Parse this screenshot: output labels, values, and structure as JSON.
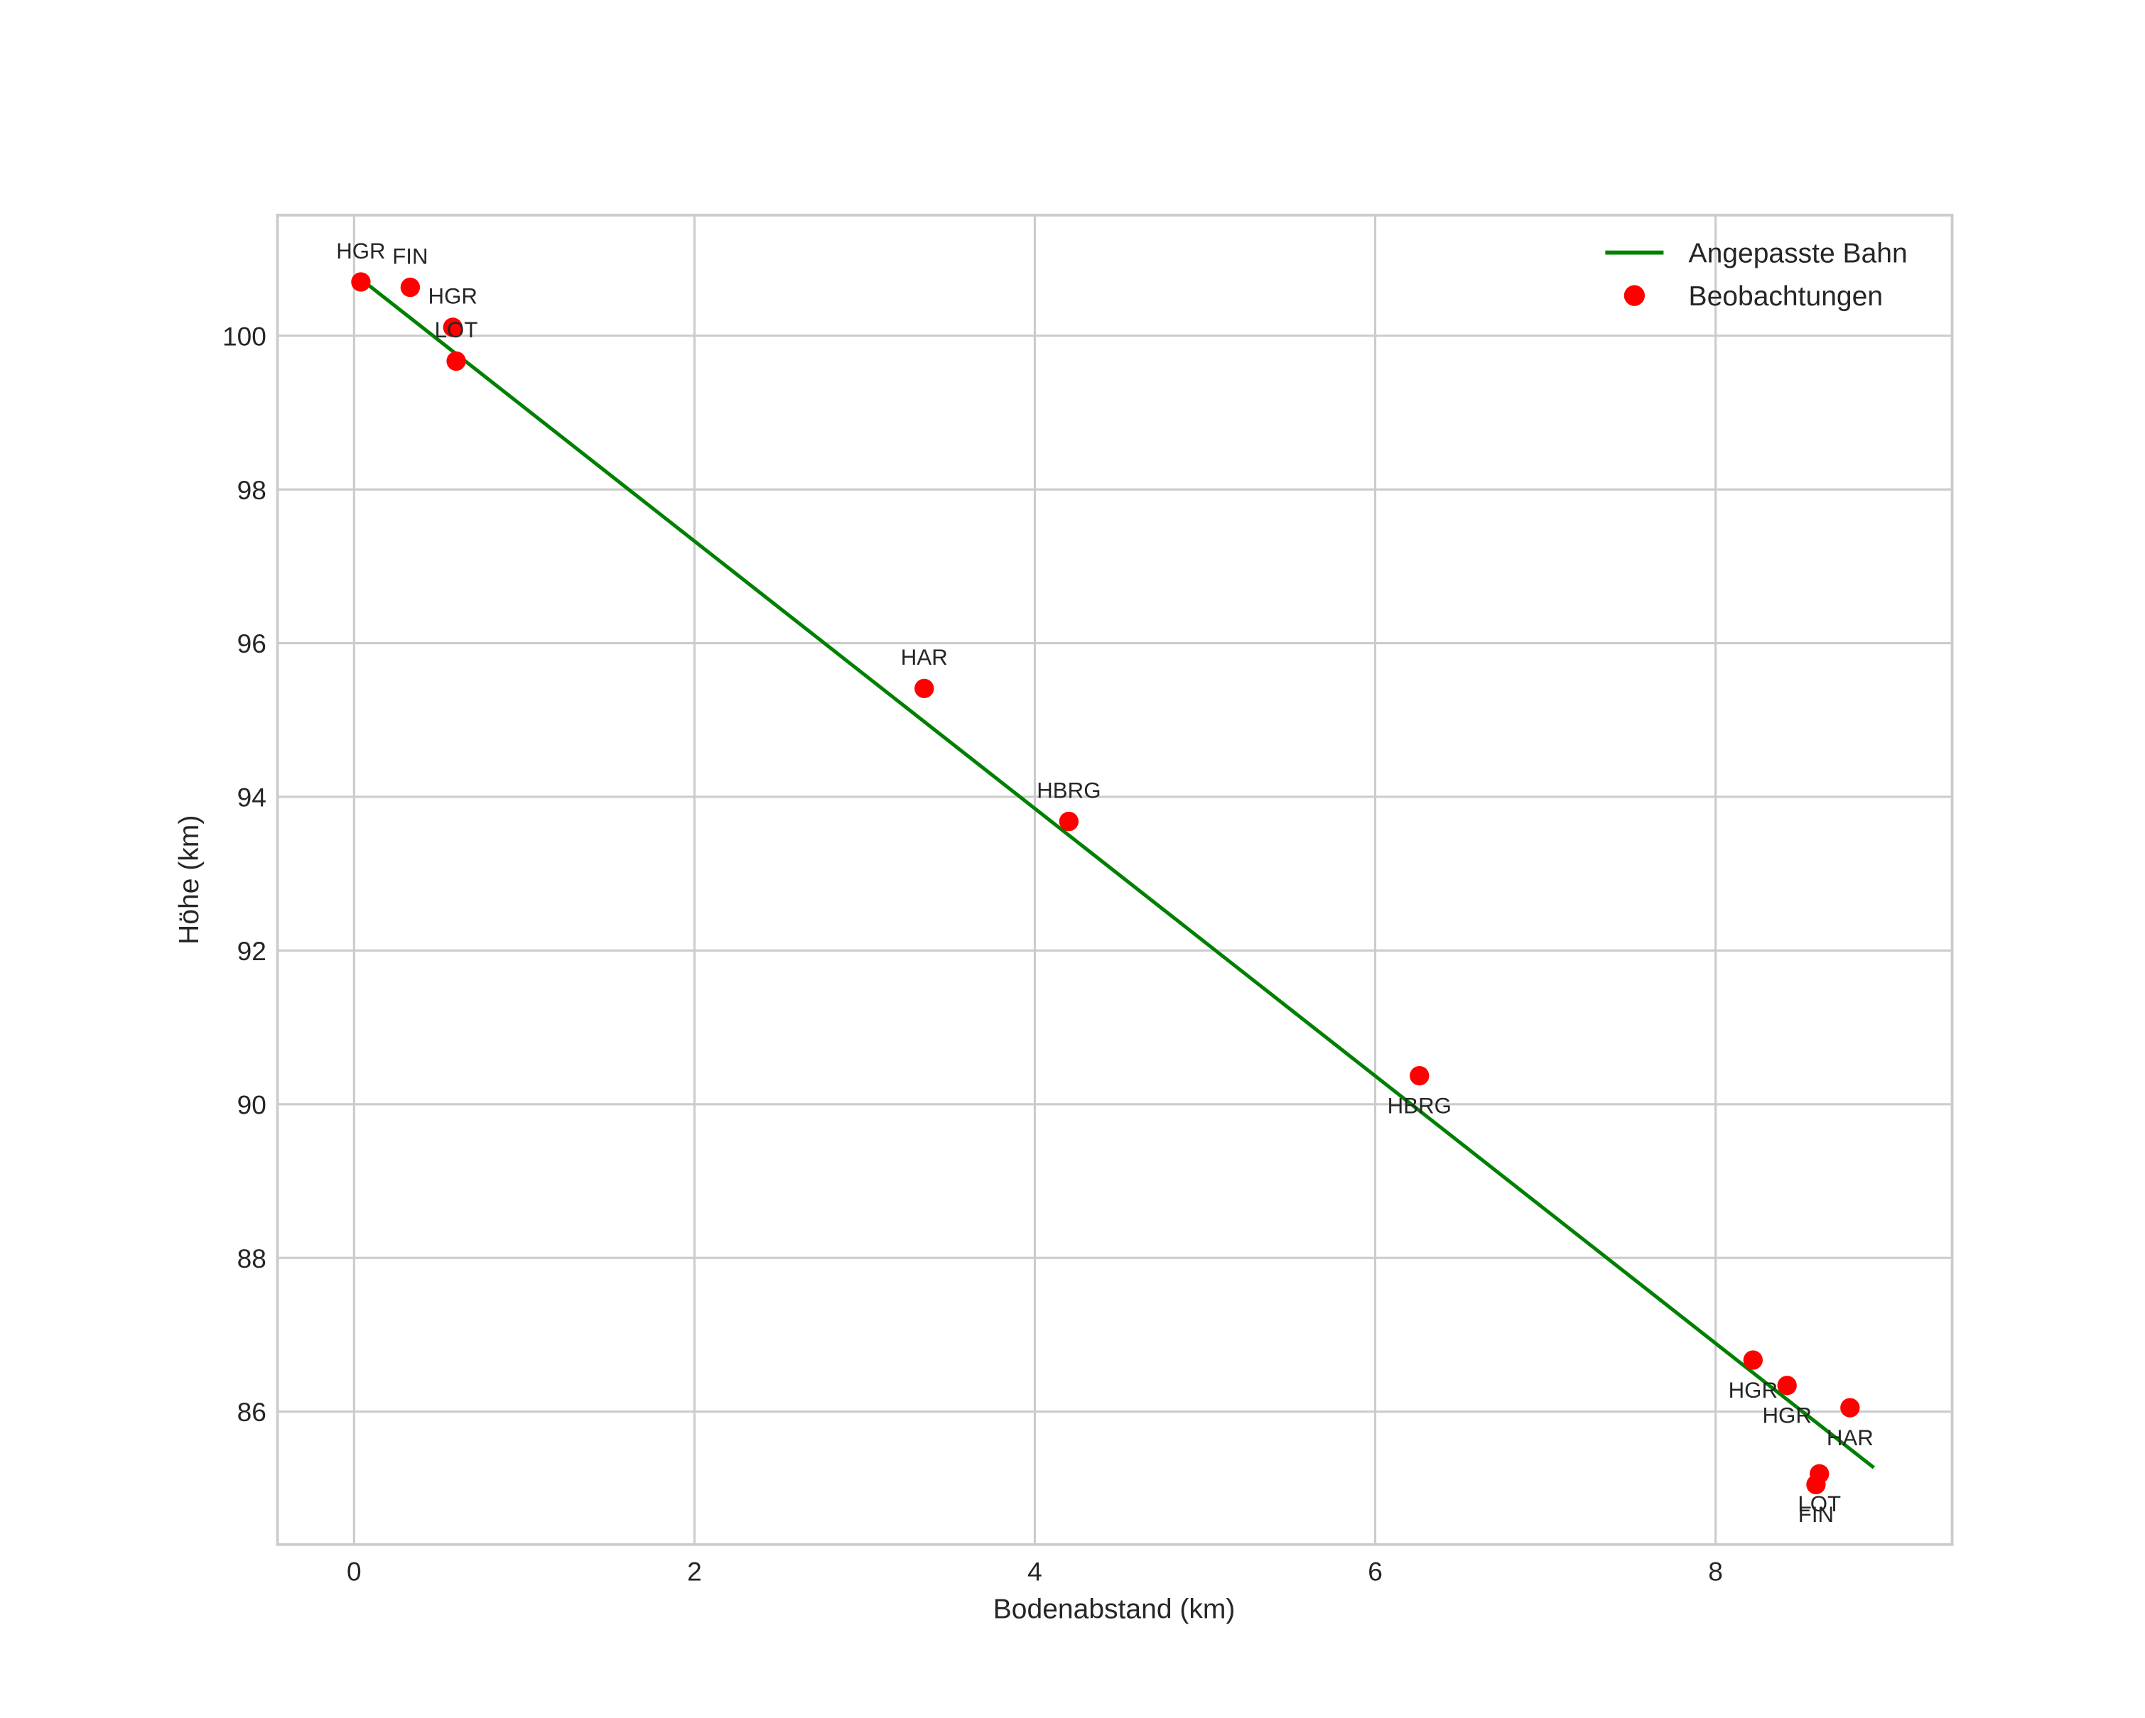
{
  "chart_data": {
    "type": "scatter",
    "title": "",
    "xlabel": "Bodenabstand (km)",
    "ylabel": "Höhe (km)",
    "xlim": [
      -0.45,
      9.39
    ],
    "ylim": [
      84.27,
      101.57
    ],
    "grid": true,
    "legend_position": "upper right",
    "x_ticks": [
      0,
      2,
      4,
      6,
      8
    ],
    "y_ticks": [
      86,
      88,
      90,
      92,
      94,
      96,
      98,
      100
    ],
    "series": [
      {
        "name": "Angepasste Bahn",
        "type": "line",
        "color": "#008000",
        "x": [
          0.05,
          8.93
        ],
        "y": [
          100.72,
          85.27
        ]
      },
      {
        "name": "Beobachtungen",
        "type": "scatter",
        "color": "#ff0000",
        "points": [
          {
            "label": "HGR",
            "x": 0.04,
            "y": 100.7,
            "label_pos": "above"
          },
          {
            "label": "FIN",
            "x": 0.33,
            "y": 100.63,
            "label_pos": "above"
          },
          {
            "label": "HGR",
            "x": 0.58,
            "y": 100.11,
            "label_pos": "above"
          },
          {
            "label": "LOT",
            "x": 0.6,
            "y": 99.67,
            "label_pos": "above"
          },
          {
            "label": "HAR",
            "x": 3.35,
            "y": 95.41,
            "label_pos": "above"
          },
          {
            "label": "HBRG",
            "x": 4.2,
            "y": 93.68,
            "label_pos": "above"
          },
          {
            "label": "HBRG",
            "x": 6.26,
            "y": 90.37,
            "label_pos": "below"
          },
          {
            "label": "HGR",
            "x": 8.22,
            "y": 86.67,
            "label_pos": "below"
          },
          {
            "label": "HGR",
            "x": 8.42,
            "y": 86.34,
            "label_pos": "below"
          },
          {
            "label": "HAR",
            "x": 8.79,
            "y": 86.05,
            "label_pos": "below"
          },
          {
            "label": "LOT",
            "x": 8.61,
            "y": 85.19,
            "label_pos": "below"
          },
          {
            "label": "FIN",
            "x": 8.59,
            "y": 85.05,
            "label_pos": "below"
          }
        ]
      }
    ]
  },
  "legend": {
    "items": [
      {
        "label": "Angepasste Bahn",
        "marker": "line",
        "color": "#008000"
      },
      {
        "label": "Beobachtungen",
        "marker": "dot",
        "color": "#ff0000"
      }
    ]
  },
  "axes": {
    "x_label": "Bodenabstand (km)",
    "y_label": "Höhe (km)",
    "x_tick_labels": [
      "0",
      "2",
      "4",
      "6",
      "8"
    ],
    "y_tick_labels": [
      "86",
      "88",
      "90",
      "92",
      "94",
      "96",
      "98",
      "100"
    ]
  }
}
